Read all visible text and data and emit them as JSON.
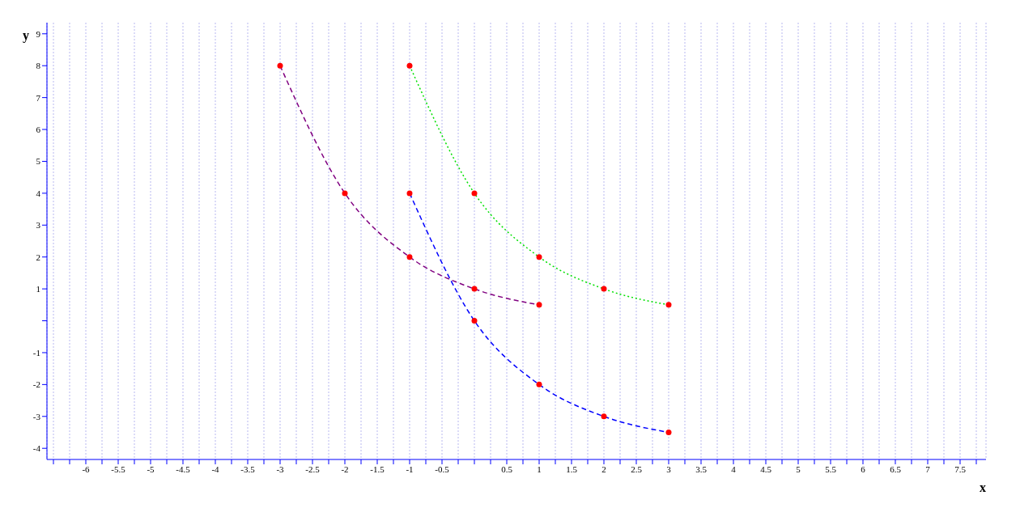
{
  "chart_data": {
    "type": "line",
    "xlabel": "x",
    "ylabel": "y",
    "xlim": [
      -6.6,
      7.9
    ],
    "ylim": [
      -4.35,
      9.35
    ],
    "xticks": [
      {
        "value": -6.5,
        "label": null
      },
      -6,
      {
        "value": -6.25,
        "label": null
      },
      -5.5,
      {
        "value": -5.75,
        "label": null
      },
      -5,
      {
        "value": -5.25,
        "label": null
      },
      -4.5,
      {
        "value": -4.75,
        "label": null
      },
      -4,
      {
        "value": -4.25,
        "label": null
      },
      -3.5,
      {
        "value": -3.75,
        "label": null
      },
      -3,
      {
        "value": -3.25,
        "label": null
      },
      -2.5,
      {
        "value": -2.75,
        "label": null
      },
      -2,
      {
        "value": -2.25,
        "label": null
      },
      -1.5,
      {
        "value": -1.75,
        "label": null
      },
      -1,
      {
        "value": -1.25,
        "label": null
      },
      -0.5,
      {
        "value": -0.75,
        "label": null
      },
      {
        "value": 0,
        "label": null
      },
      {
        "value": -0.25,
        "label": null
      },
      0.5,
      {
        "value": 0.25,
        "label": null
      },
      1,
      {
        "value": 0.75,
        "label": null
      },
      1.5,
      {
        "value": 1.25,
        "label": null
      },
      2,
      {
        "value": 1.75,
        "label": null
      },
      2.5,
      {
        "value": 2.25,
        "label": null
      },
      3,
      {
        "value": 2.75,
        "label": null
      },
      3.5,
      {
        "value": 3.25,
        "label": null
      },
      4,
      {
        "value": 3.75,
        "label": null
      },
      4.5,
      {
        "value": 4.25,
        "label": null
      },
      5,
      {
        "value": 4.75,
        "label": null
      },
      5.5,
      {
        "value": 5.25,
        "label": null
      },
      6,
      {
        "value": 5.75,
        "label": null
      },
      6.5,
      {
        "value": 6.25,
        "label": null
      },
      7,
      {
        "value": 6.75,
        "label": null
      },
      7.5,
      {
        "value": 7.25,
        "label": null
      },
      {
        "value": 7.75,
        "label": null
      }
    ],
    "yticks": [
      -4,
      -3,
      -2,
      -1,
      {
        "value": 0,
        "label": null
      },
      1,
      2,
      3,
      4,
      5,
      6,
      7,
      8,
      9
    ],
    "grid": "x",
    "marker": "circle",
    "series": [
      {
        "color": "#800080",
        "line_style": "dashed",
        "x": [
          -3,
          -2,
          -1,
          0,
          1
        ],
        "values": [
          8,
          4,
          2,
          1,
          0.5
        ],
        "colors": [
          "#ff0000",
          "#ff0000",
          "#ff0000",
          "#ff0000",
          "#ff0000"
        ]
      },
      {
        "color": "#00e000",
        "line_style": "dotted",
        "x": [
          -1,
          0,
          1,
          2,
          3
        ],
        "values": [
          8,
          4,
          2,
          1,
          0.5
        ],
        "colors": [
          "#ff0000",
          "#ff0000",
          "#ff0000",
          "#ff0000",
          "#ff0000"
        ]
      },
      {
        "color": "#0000ff",
        "line_style": "dashed",
        "x": [
          -1,
          0,
          1,
          2,
          3
        ],
        "values": [
          4,
          0,
          -2,
          -3,
          -3.5
        ],
        "colors": [
          "#ff0000",
          "#ff0000",
          "#ff0000",
          "#ff0000",
          "#ff0000"
        ]
      }
    ]
  }
}
